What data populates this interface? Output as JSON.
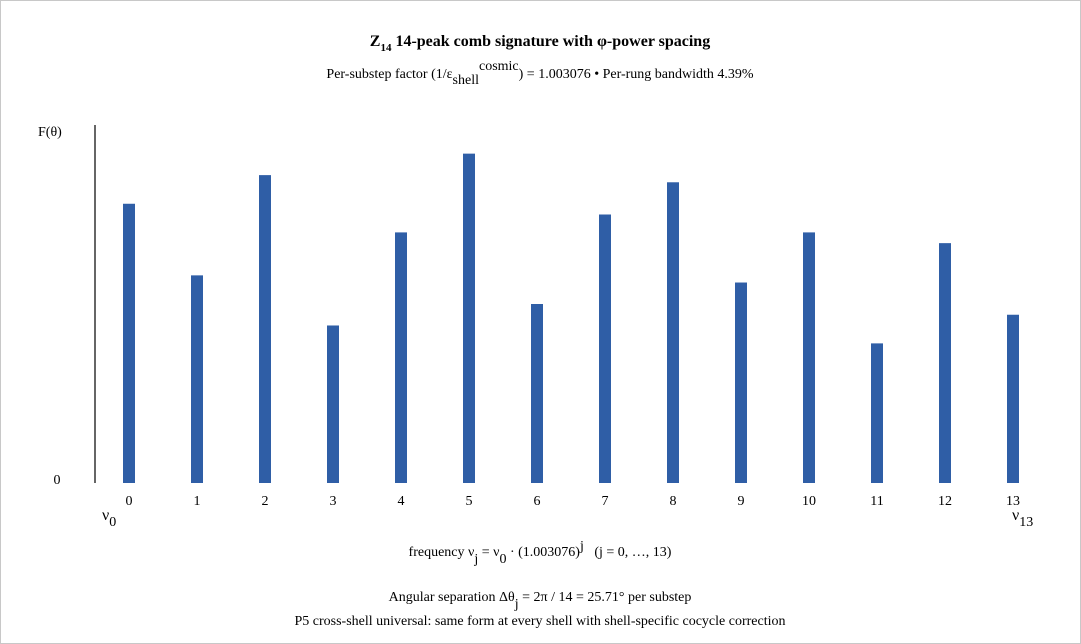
{
  "chart_data": {
    "type": "bar",
    "title": [
      "Z",
      "14",
      " 14-peak comb signature with φ-power spacing"
    ],
    "subtitle": [
      "Per-substep factor (1/ε",
      "shell",
      "cosmic",
      ") = 1.003076 • Per-rung bandwidth 4.39%"
    ],
    "y_label": "F(θ)",
    "x_label": [
      "frequency ν",
      "j",
      " = ν",
      "0",
      " · (1.003076)",
      "j",
      "   (j = 0, …, 13)"
    ],
    "x_start_label": [
      "ν",
      "0"
    ],
    "x_end_label": [
      "ν",
      "13"
    ],
    "annotation": [
      "Angular separation Δθ",
      "j",
      " = 2π / 14 = 25.71° per substep"
    ],
    "footer": "P5 cross-shell universal: same form at every shell with shell-specific cocycle correction",
    "categories": [
      "0",
      "1",
      "2",
      "3",
      "4",
      "5",
      "6",
      "7",
      "8",
      "9",
      "10",
      "11",
      "12",
      "13"
    ],
    "values": [
      0.78,
      0.58,
      0.86,
      0.44,
      0.7,
      0.92,
      0.5,
      0.75,
      0.84,
      0.56,
      0.7,
      0.39,
      0.67,
      0.47
    ],
    "color": "#2f5ea6",
    "ylim": [
      0,
      1
    ],
    "yticks": [
      0
    ]
  }
}
